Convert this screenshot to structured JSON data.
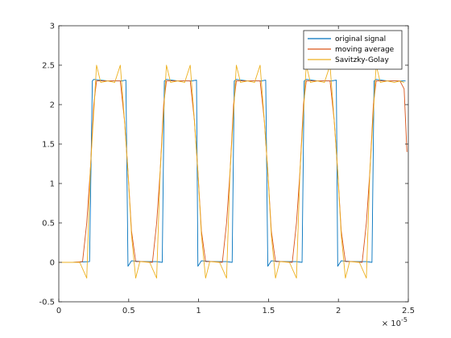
{
  "chart_data": {
    "type": "line",
    "title": "",
    "xlabel": "",
    "ylabel": "",
    "xlim": [
      0,
      2.5
    ],
    "ylim": [
      -0.5,
      3
    ],
    "x_multiplier_label": "× 10",
    "x_multiplier_exponent": "-5",
    "x_ticks": [
      {
        "value": 0,
        "label": "0"
      },
      {
        "value": 0.5,
        "label": "0.5"
      },
      {
        "value": 1,
        "label": "1"
      },
      {
        "value": 1.5,
        "label": "1.5"
      },
      {
        "value": 2,
        "label": "2"
      },
      {
        "value": 2.5,
        "label": "2.5"
      }
    ],
    "y_ticks": [
      {
        "value": -0.5,
        "label": "-0.5"
      },
      {
        "value": 0,
        "label": "0"
      },
      {
        "value": 0.5,
        "label": "0.5"
      },
      {
        "value": 1,
        "label": "1"
      },
      {
        "value": 1.5,
        "label": "1.5"
      },
      {
        "value": 2,
        "label": "2"
      },
      {
        "value": 2.5,
        "label": "2.5"
      },
      {
        "value": 3,
        "label": "3"
      }
    ],
    "grid": false,
    "legend_position": "top-right",
    "series": [
      {
        "name": "original signal",
        "color": "#0072bd",
        "points": [
          [
            0,
            0
          ],
          [
            0.1,
            0
          ],
          [
            0.22,
            0.01
          ],
          [
            0.24,
            2.3
          ],
          [
            0.25,
            2.32
          ],
          [
            0.35,
            2.3
          ],
          [
            0.45,
            2.3
          ],
          [
            0.48,
            2.31
          ],
          [
            0.495,
            -0.05
          ],
          [
            0.52,
            0.02
          ],
          [
            0.6,
            0.01
          ],
          [
            0.7,
            0.01
          ],
          [
            0.74,
            0
          ],
          [
            0.755,
            2.3
          ],
          [
            0.77,
            2.32
          ],
          [
            0.85,
            2.3
          ],
          [
            0.95,
            2.3
          ],
          [
            0.985,
            2.31
          ],
          [
            0.995,
            -0.05
          ],
          [
            1.02,
            0.02
          ],
          [
            1.1,
            0.01
          ],
          [
            1.2,
            0.01
          ],
          [
            1.24,
            0
          ],
          [
            1.255,
            2.3
          ],
          [
            1.27,
            2.32
          ],
          [
            1.35,
            2.3
          ],
          [
            1.45,
            2.3
          ],
          [
            1.48,
            2.31
          ],
          [
            1.495,
            -0.05
          ],
          [
            1.52,
            0.02
          ],
          [
            1.6,
            0.01
          ],
          [
            1.7,
            0.01
          ],
          [
            1.74,
            0
          ],
          [
            1.755,
            2.3
          ],
          [
            1.77,
            2.32
          ],
          [
            1.85,
            2.3
          ],
          [
            1.95,
            2.3
          ],
          [
            1.985,
            2.31
          ],
          [
            1.995,
            -0.05
          ],
          [
            2.02,
            0.02
          ],
          [
            2.1,
            0.01
          ],
          [
            2.2,
            0.01
          ],
          [
            2.24,
            0
          ],
          [
            2.255,
            2.3
          ],
          [
            2.27,
            2.32
          ],
          [
            2.35,
            2.3
          ],
          [
            2.45,
            2.3
          ],
          [
            2.48,
            2.3
          ]
        ]
      },
      {
        "name": "moving average",
        "color": "#d95319",
        "points": [
          [
            0,
            0
          ],
          [
            0.1,
            0
          ],
          [
            0.17,
            0.01
          ],
          [
            0.2,
            0.5
          ],
          [
            0.225,
            1.15
          ],
          [
            0.25,
            2.0
          ],
          [
            0.27,
            2.3
          ],
          [
            0.35,
            2.3
          ],
          [
            0.44,
            2.3
          ],
          [
            0.47,
            1.8
          ],
          [
            0.495,
            1.15
          ],
          [
            0.52,
            0.4
          ],
          [
            0.55,
            0.01
          ],
          [
            0.6,
            0.01
          ],
          [
            0.67,
            0
          ],
          [
            0.7,
            0.5
          ],
          [
            0.725,
            1.15
          ],
          [
            0.75,
            2.0
          ],
          [
            0.77,
            2.3
          ],
          [
            0.85,
            2.3
          ],
          [
            0.94,
            2.3
          ],
          [
            0.97,
            1.8
          ],
          [
            0.995,
            1.15
          ],
          [
            1.02,
            0.4
          ],
          [
            1.05,
            0.01
          ],
          [
            1.1,
            0.01
          ],
          [
            1.17,
            0
          ],
          [
            1.2,
            0.5
          ],
          [
            1.225,
            1.15
          ],
          [
            1.25,
            2.0
          ],
          [
            1.27,
            2.3
          ],
          [
            1.35,
            2.3
          ],
          [
            1.44,
            2.3
          ],
          [
            1.47,
            1.8
          ],
          [
            1.495,
            1.15
          ],
          [
            1.52,
            0.4
          ],
          [
            1.55,
            0.01
          ],
          [
            1.6,
            0.01
          ],
          [
            1.67,
            0
          ],
          [
            1.7,
            0.5
          ],
          [
            1.725,
            1.15
          ],
          [
            1.75,
            2.0
          ],
          [
            1.77,
            2.3
          ],
          [
            1.85,
            2.3
          ],
          [
            1.94,
            2.3
          ],
          [
            1.97,
            1.8
          ],
          [
            1.995,
            1.15
          ],
          [
            2.02,
            0.4
          ],
          [
            2.05,
            0.01
          ],
          [
            2.1,
            0.01
          ],
          [
            2.17,
            0
          ],
          [
            2.2,
            0.5
          ],
          [
            2.225,
            1.15
          ],
          [
            2.25,
            2.0
          ],
          [
            2.27,
            2.3
          ],
          [
            2.35,
            2.3
          ],
          [
            2.44,
            2.3
          ],
          [
            2.47,
            2.2
          ],
          [
            2.49,
            1.4
          ]
        ]
      },
      {
        "name": "Savitzky-Golay",
        "color": "#edb120",
        "points": [
          [
            0,
            0
          ],
          [
            0.1,
            0
          ],
          [
            0.15,
            0
          ],
          [
            0.2,
            -0.2
          ],
          [
            0.225,
            1.15
          ],
          [
            0.27,
            2.5
          ],
          [
            0.3,
            2.28
          ],
          [
            0.35,
            2.3
          ],
          [
            0.4,
            2.28
          ],
          [
            0.44,
            2.5
          ],
          [
            0.47,
            1.8
          ],
          [
            0.495,
            1.15
          ],
          [
            0.52,
            0.35
          ],
          [
            0.55,
            -0.2
          ],
          [
            0.58,
            0.01
          ],
          [
            0.65,
            0
          ],
          [
            0.7,
            -0.2
          ],
          [
            0.725,
            1.15
          ],
          [
            0.77,
            2.5
          ],
          [
            0.8,
            2.28
          ],
          [
            0.85,
            2.3
          ],
          [
            0.9,
            2.28
          ],
          [
            0.94,
            2.5
          ],
          [
            0.97,
            1.8
          ],
          [
            0.995,
            1.15
          ],
          [
            1.02,
            0.35
          ],
          [
            1.05,
            -0.2
          ],
          [
            1.08,
            0.01
          ],
          [
            1.15,
            0
          ],
          [
            1.2,
            -0.2
          ],
          [
            1.225,
            1.15
          ],
          [
            1.27,
            2.5
          ],
          [
            1.3,
            2.28
          ],
          [
            1.35,
            2.3
          ],
          [
            1.4,
            2.28
          ],
          [
            1.44,
            2.5
          ],
          [
            1.47,
            1.8
          ],
          [
            1.495,
            1.15
          ],
          [
            1.52,
            0.35
          ],
          [
            1.55,
            -0.2
          ],
          [
            1.58,
            0.01
          ],
          [
            1.65,
            0
          ],
          [
            1.7,
            -0.2
          ],
          [
            1.725,
            1.15
          ],
          [
            1.77,
            2.5
          ],
          [
            1.8,
            2.28
          ],
          [
            1.85,
            2.3
          ],
          [
            1.9,
            2.28
          ],
          [
            1.94,
            2.5
          ],
          [
            1.97,
            1.8
          ],
          [
            1.995,
            1.15
          ],
          [
            2.02,
            0.35
          ],
          [
            2.05,
            -0.2
          ],
          [
            2.08,
            0.01
          ],
          [
            2.15,
            0
          ],
          [
            2.2,
            -0.2
          ],
          [
            2.225,
            1.15
          ],
          [
            2.27,
            2.5
          ],
          [
            2.3,
            2.28
          ],
          [
            2.35,
            2.3
          ],
          [
            2.4,
            2.28
          ],
          [
            2.44,
            2.3
          ],
          [
            2.47,
            2.28
          ]
        ]
      }
    ]
  }
}
